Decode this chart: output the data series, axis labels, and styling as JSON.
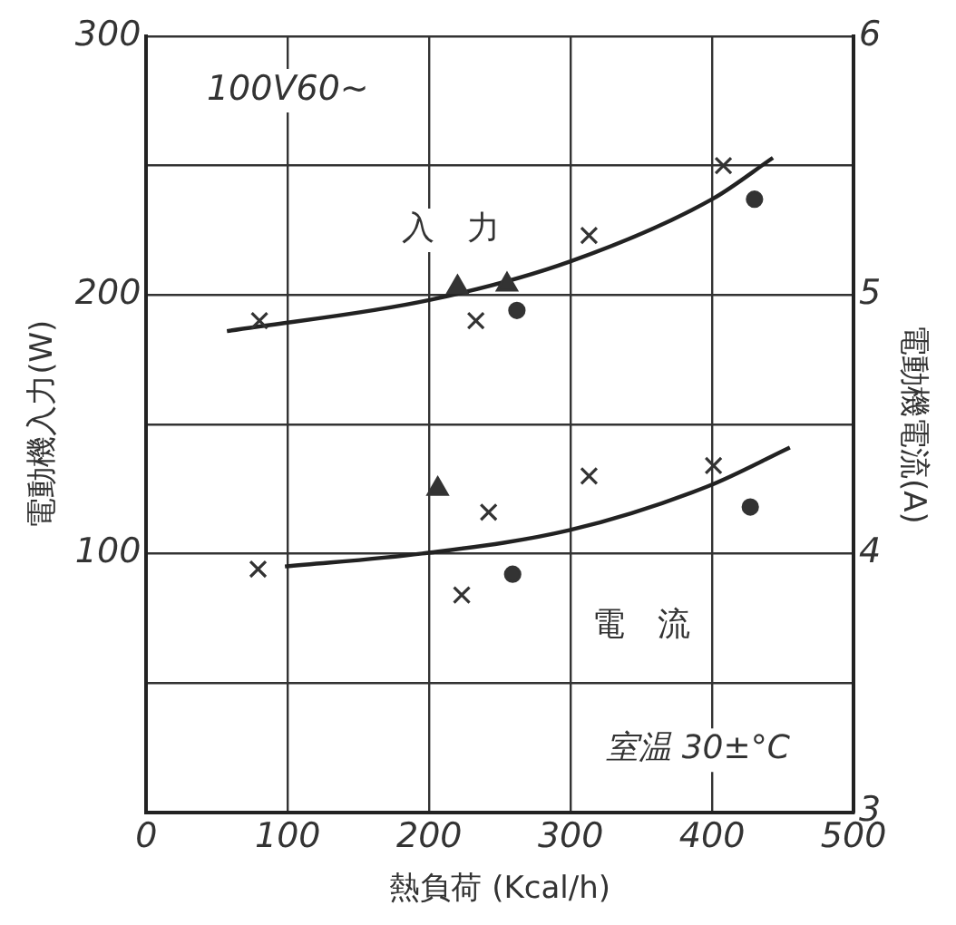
{
  "chart_data": {
    "type": "scatter",
    "xlabel": "熱負荷 (Kcal/h)",
    "ylabel": "電動機入力(W)",
    "y2label": "電動機電流(A)",
    "xlim": [
      0,
      500
    ],
    "xticks": [
      0,
      100,
      200,
      300,
      400,
      500
    ],
    "ylim": [
      0,
      300
    ],
    "yticks": [
      {
        "value": 0,
        "label": null
      },
      {
        "value": 50,
        "label": null
      },
      100,
      {
        "value": 150,
        "label": null
      },
      200,
      {
        "value": 250,
        "label": null
      },
      300
    ],
    "y2lim": [
      3,
      6
    ],
    "y2ticks": [
      3,
      {
        "value": 3.5,
        "label": null
      },
      4,
      {
        "value": 4.5,
        "label": null
      },
      5,
      {
        "value": 5.5,
        "label": null
      },
      6
    ],
    "grid": true,
    "legend": false,
    "annotations": [
      "100V60~",
      "室温 30±°C",
      "入　力",
      "電　流"
    ],
    "series": [
      {
        "type": "scatter",
        "marker": "cross",
        "color": "#333333",
        "x": [
          80,
          233,
          313,
          408
        ],
        "values": [
          190,
          190,
          223,
          250
        ]
      },
      {
        "type": "scatter",
        "marker": "triangle",
        "color": "#333333",
        "x": [
          220,
          255
        ],
        "values": [
          203,
          204
        ]
      },
      {
        "type": "scatter",
        "marker": "circle",
        "color": "#333333",
        "x": [
          262,
          430
        ],
        "values": [
          194,
          237
        ]
      },
      {
        "type": "line",
        "marker": "none",
        "color": "#222222",
        "x": [
          57,
          200,
          300,
          400,
          443
        ],
        "values": [
          186,
          198,
          213,
          237,
          253
        ]
      },
      {
        "type": "scatter",
        "marker": "cross",
        "color": "#333333",
        "axis": "y2",
        "x": [
          79,
          242,
          223,
          313,
          401
        ],
        "values": [
          3.94,
          4.16,
          3.84,
          4.3,
          4.34
        ]
      },
      {
        "type": "scatter",
        "marker": "triangle",
        "color": "#333333",
        "axis": "y2",
        "x": [
          206
        ],
        "values": [
          4.25
        ]
      },
      {
        "type": "scatter",
        "marker": "circle",
        "color": "#333333",
        "axis": "y2",
        "x": [
          259,
          427
        ],
        "values": [
          3.92,
          4.18
        ]
      },
      {
        "type": "line",
        "marker": "none",
        "color": "#222222",
        "axis": "y2",
        "x": [
          98,
          195,
          299,
          397,
          455
        ],
        "values": [
          3.95,
          4.0,
          4.09,
          4.26,
          4.41
        ]
      }
    ]
  }
}
